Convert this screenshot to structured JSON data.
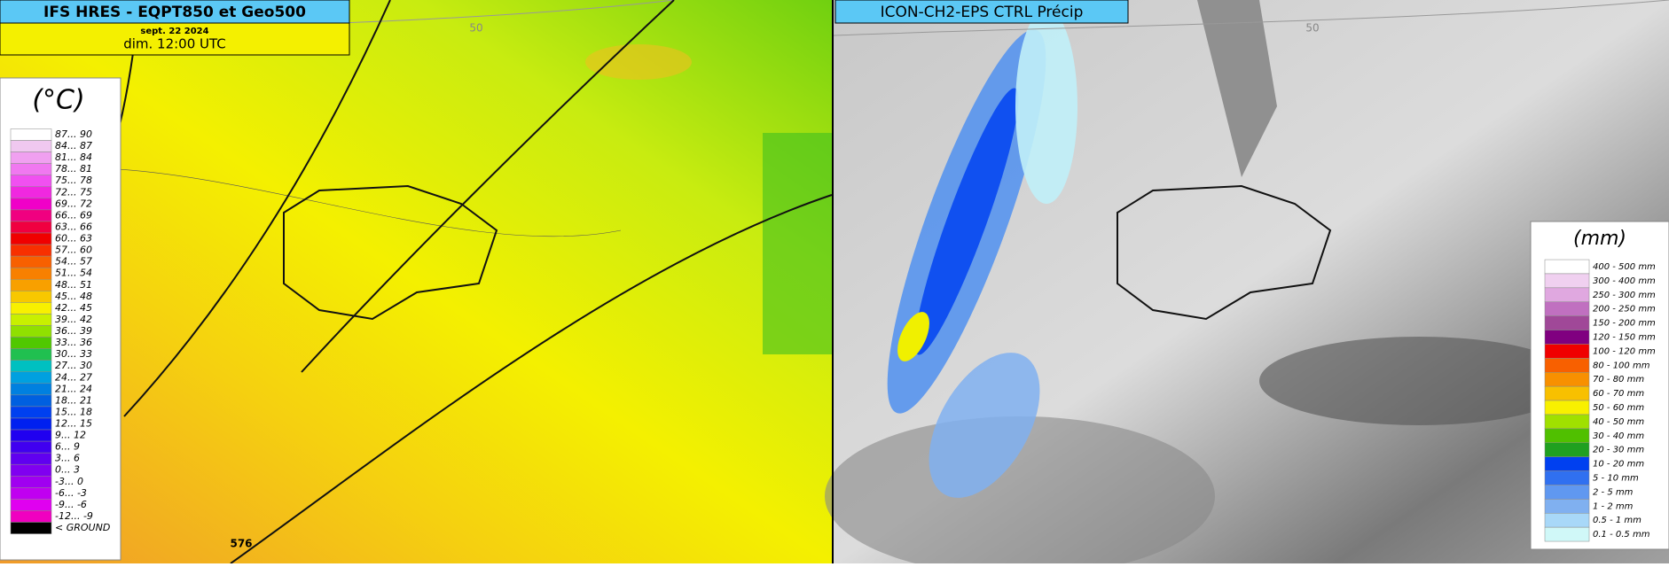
{
  "left_panel": {
    "title": "IFS HRES - EQPT850 et Geo500",
    "date": "sept. 22 2024",
    "time": "dim. 12:00 UTC",
    "contour_labels": [
      "50",
      "576"
    ],
    "legend": {
      "unit": "(°C)",
      "items": [
        {
          "label": "87... 90",
          "color": "#ffffff"
        },
        {
          "label": "84... 87",
          "color": "#f0c8f0"
        },
        {
          "label": "81... 84",
          "color": "#f0a0f0"
        },
        {
          "label": "78... 81",
          "color": "#f078f0"
        },
        {
          "label": "75... 78",
          "color": "#f050f0"
        },
        {
          "label": "72... 75",
          "color": "#f028e0"
        },
        {
          "label": "69... 72",
          "color": "#f000c8"
        },
        {
          "label": "66... 69",
          "color": "#f00080"
        },
        {
          "label": "63... 66",
          "color": "#f00040"
        },
        {
          "label": "60... 63",
          "color": "#f00000"
        },
        {
          "label": "57... 60",
          "color": "#f83000"
        },
        {
          "label": "54... 57",
          "color": "#f86000"
        },
        {
          "label": "51... 54",
          "color": "#f88000"
        },
        {
          "label": "48... 51",
          "color": "#f8a000"
        },
        {
          "label": "45... 48",
          "color": "#f8c800"
        },
        {
          "label": "42... 45",
          "color": "#f8f000"
        },
        {
          "label": "39... 42",
          "color": "#c8f000"
        },
        {
          "label": "36... 39",
          "color": "#90e000"
        },
        {
          "label": "33... 36",
          "color": "#50c800"
        },
        {
          "label": "30... 33",
          "color": "#20c050"
        },
        {
          "label": "27... 30",
          "color": "#00c0c0"
        },
        {
          "label": "24... 27",
          "color": "#00a0e0"
        },
        {
          "label": "21... 24",
          "color": "#0080e0"
        },
        {
          "label": "18... 21",
          "color": "#0060e0"
        },
        {
          "label": "15... 18",
          "color": "#0040f0"
        },
        {
          "label": "12... 15",
          "color": "#0020f0"
        },
        {
          "label": " 9... 12",
          "color": "#2000f0"
        },
        {
          "label": " 6... 9",
          "color": "#4000f0"
        },
        {
          "label": " 3... 6",
          "color": "#6000f0"
        },
        {
          "label": " 0... 3",
          "color": "#8000f0"
        },
        {
          "label": "-3... 0",
          "color": "#a000f0"
        },
        {
          "label": "-6... -3",
          "color": "#c000f0"
        },
        {
          "label": "-9... -6",
          "color": "#e000f0"
        },
        {
          "label": "-12... -9",
          "color": "#f000c0"
        },
        {
          "label": "< GROUND",
          "color": "#000000"
        }
      ]
    }
  },
  "right_panel": {
    "title": "ICON-CH2-EPS CTRL Précip",
    "contour_labels": [
      "50"
    ],
    "legend": {
      "unit": "(mm)",
      "items": [
        {
          "label": "400 - 500 mm",
          "color": "#ffffff"
        },
        {
          "label": "300 - 400 mm",
          "color": "#f0d0f0"
        },
        {
          "label": "250 - 300 mm",
          "color": "#e0a8e0"
        },
        {
          "label": "200 - 250 mm",
          "color": "#c070c0"
        },
        {
          "label": "150 - 200 mm",
          "color": "#a04898"
        },
        {
          "label": "120 - 150 mm",
          "color": "#800080"
        },
        {
          "label": "100 - 120 mm",
          "color": "#f00000"
        },
        {
          "label": "80 - 100 mm",
          "color": "#f86000"
        },
        {
          "label": "70 - 80 mm",
          "color": "#f89000"
        },
        {
          "label": "60 - 70 mm",
          "color": "#f8c000"
        },
        {
          "label": "50 - 60 mm",
          "color": "#f8f000"
        },
        {
          "label": "40 - 50 mm",
          "color": "#a0e000"
        },
        {
          "label": "30 - 40 mm",
          "color": "#50c000"
        },
        {
          "label": "20 - 30 mm",
          "color": "#20a020"
        },
        {
          "label": "10 - 20 mm",
          "color": "#0040f0"
        },
        {
          "label": "5 - 10 mm",
          "color": "#3070f0"
        },
        {
          "label": "2 - 5 mm",
          "color": "#6098f0"
        },
        {
          "label": "1 - 2 mm",
          "color": "#80b0f0"
        },
        {
          "label": "0.5 - 1 mm",
          "color": "#a8d8f8"
        },
        {
          "label": "0.1 - 0.5 mm",
          "color": "#d0f8f8"
        }
      ]
    }
  }
}
